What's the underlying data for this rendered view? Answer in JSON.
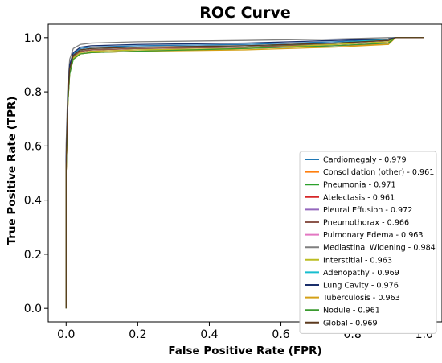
{
  "chart_data": {
    "type": "line",
    "title": "ROC Curve",
    "xlabel": "False Positive Rate (FPR)",
    "ylabel": "True Positive Rate (TPR)",
    "xlim": [
      -0.05,
      1.05
    ],
    "ylim": [
      -0.05,
      1.05
    ],
    "xticks": [
      "0.0",
      "0.2",
      "0.4",
      "0.6",
      "0.8",
      "1.0"
    ],
    "yticks": [
      "0.0",
      "0.2",
      "0.4",
      "0.6",
      "0.8",
      "1.0"
    ],
    "grid": false,
    "legend_position": "lower-right",
    "series": [
      {
        "name": "Cardiomegaly - 0.979",
        "color": "#1f77b4",
        "x": [
          0,
          0,
          0.005,
          0.01,
          0.02,
          0.04,
          0.07,
          0.2,
          0.5,
          0.75,
          0.9,
          0.92,
          1.0
        ],
        "y": [
          0,
          0.55,
          0.8,
          0.9,
          0.94,
          0.96,
          0.965,
          0.97,
          0.975,
          0.985,
          0.995,
          1.0,
          1.0
        ]
      },
      {
        "name": "Consolidation (other) - 0.961",
        "color": "#ff7f0e",
        "x": [
          0,
          0,
          0.005,
          0.01,
          0.02,
          0.04,
          0.07,
          0.2,
          0.5,
          0.75,
          0.9,
          0.92,
          1.0
        ],
        "y": [
          0,
          0.5,
          0.76,
          0.87,
          0.92,
          0.94,
          0.945,
          0.95,
          0.96,
          0.97,
          0.975,
          1.0,
          1.0
        ]
      },
      {
        "name": "Pneumonia - 0.971",
        "color": "#2ca02c",
        "x": [
          0,
          0,
          0.005,
          0.01,
          0.02,
          0.04,
          0.07,
          0.2,
          0.5,
          0.75,
          0.9,
          0.92,
          1.0
        ],
        "y": [
          0,
          0.52,
          0.78,
          0.88,
          0.93,
          0.95,
          0.955,
          0.96,
          0.965,
          0.98,
          0.99,
          1.0,
          1.0
        ]
      },
      {
        "name": "Atelectasis - 0.961",
        "color": "#d62728",
        "x": [
          0,
          0,
          0.005,
          0.01,
          0.02,
          0.04,
          0.07,
          0.2,
          0.5,
          0.75,
          0.9,
          0.92,
          1.0
        ],
        "y": [
          0,
          0.5,
          0.77,
          0.88,
          0.93,
          0.95,
          0.955,
          0.96,
          0.965,
          0.975,
          0.985,
          1.0,
          1.0
        ]
      },
      {
        "name": "Pleural Effusion - 0.972",
        "color": "#9467bd",
        "x": [
          0,
          0,
          0.005,
          0.01,
          0.02,
          0.04,
          0.07,
          0.2,
          0.5,
          0.75,
          0.9,
          0.92,
          1.0
        ],
        "y": [
          0,
          0.53,
          0.79,
          0.89,
          0.935,
          0.955,
          0.96,
          0.965,
          0.97,
          0.98,
          0.99,
          1.0,
          1.0
        ]
      },
      {
        "name": "Pneumothorax - 0.966",
        "color": "#8c564b",
        "x": [
          0,
          0,
          0.005,
          0.01,
          0.02,
          0.04,
          0.07,
          0.2,
          0.5,
          0.75,
          0.9,
          0.92,
          1.0
        ],
        "y": [
          0,
          0.5,
          0.78,
          0.88,
          0.93,
          0.95,
          0.955,
          0.96,
          0.965,
          0.975,
          0.985,
          1.0,
          1.0
        ]
      },
      {
        "name": "Pulmonary Edema - 0.963",
        "color": "#e377c2",
        "x": [
          0,
          0,
          0.005,
          0.01,
          0.02,
          0.04,
          0.07,
          0.2,
          0.5,
          0.75,
          0.9,
          0.92,
          1.0
        ],
        "y": [
          0,
          0.5,
          0.77,
          0.87,
          0.925,
          0.945,
          0.95,
          0.955,
          0.96,
          0.97,
          0.98,
          1.0,
          1.0
        ]
      },
      {
        "name": "Mediastinal Widening - 0.984",
        "color": "#7f7f7f",
        "x": [
          0,
          0,
          0.005,
          0.01,
          0.02,
          0.04,
          0.07,
          0.2,
          0.5,
          0.75,
          0.9,
          0.92,
          1.0
        ],
        "y": [
          0,
          0.6,
          0.83,
          0.92,
          0.96,
          0.975,
          0.98,
          0.985,
          0.99,
          0.995,
          1.0,
          1.0,
          1.0
        ]
      },
      {
        "name": "Interstitial - 0.963",
        "color": "#bcbd22",
        "x": [
          0,
          0,
          0.005,
          0.01,
          0.02,
          0.04,
          0.07,
          0.2,
          0.5,
          0.75,
          0.9,
          0.92,
          1.0
        ],
        "y": [
          0,
          0.5,
          0.76,
          0.87,
          0.925,
          0.945,
          0.95,
          0.955,
          0.96,
          0.975,
          0.985,
          1.0,
          1.0
        ]
      },
      {
        "name": "Adenopathy - 0.969",
        "color": "#17becf",
        "x": [
          0,
          0,
          0.005,
          0.01,
          0.02,
          0.04,
          0.07,
          0.2,
          0.5,
          0.75,
          0.9,
          0.92,
          1.0
        ],
        "y": [
          0,
          0.52,
          0.78,
          0.885,
          0.935,
          0.955,
          0.96,
          0.965,
          0.97,
          0.98,
          0.995,
          1.0,
          1.0
        ]
      },
      {
        "name": "Lung Cavity - 0.976",
        "color": "#1a2f6b",
        "x": [
          0,
          0,
          0.005,
          0.01,
          0.02,
          0.04,
          0.07,
          0.2,
          0.5,
          0.75,
          0.9,
          0.92,
          1.0
        ],
        "y": [
          0,
          0.55,
          0.8,
          0.9,
          0.945,
          0.965,
          0.97,
          0.975,
          0.98,
          0.99,
          0.995,
          1.0,
          1.0
        ]
      },
      {
        "name": "Tuberculosis - 0.963",
        "color": "#d4a017",
        "x": [
          0,
          0,
          0.005,
          0.01,
          0.02,
          0.04,
          0.07,
          0.2,
          0.5,
          0.75,
          0.9,
          0.92,
          1.0
        ],
        "y": [
          0,
          0.5,
          0.76,
          0.87,
          0.92,
          0.94,
          0.945,
          0.95,
          0.955,
          0.965,
          0.975,
          1.0,
          1.0
        ]
      },
      {
        "name": "Nodule - 0.961",
        "color": "#3a9a2f",
        "x": [
          0,
          0,
          0.005,
          0.01,
          0.02,
          0.04,
          0.07,
          0.2,
          0.5,
          0.75,
          0.9,
          0.92,
          1.0
        ],
        "y": [
          0,
          0.5,
          0.76,
          0.865,
          0.92,
          0.94,
          0.945,
          0.95,
          0.96,
          0.97,
          0.98,
          1.0,
          1.0
        ]
      },
      {
        "name": "Global - 0.969",
        "color": "#5c3a1e",
        "x": [
          0,
          0,
          0.005,
          0.01,
          0.02,
          0.04,
          0.07,
          0.2,
          0.5,
          0.75,
          0.9,
          0.92,
          1.0
        ],
        "y": [
          0,
          0.52,
          0.78,
          0.885,
          0.935,
          0.955,
          0.96,
          0.965,
          0.97,
          0.98,
          0.99,
          1.0,
          1.0
        ]
      }
    ]
  }
}
